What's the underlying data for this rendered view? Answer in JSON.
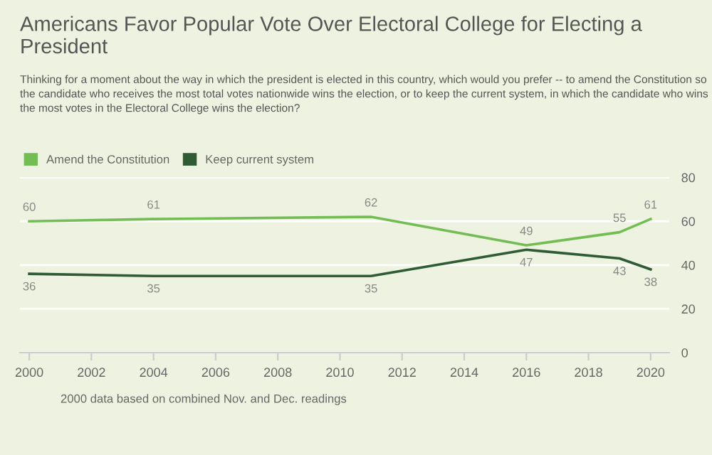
{
  "chart_data": {
    "type": "line",
    "title": "Americans Favor Popular Vote Over Electoral College for Electing a President",
    "subtitle": "Thinking for a moment about the way in which the president is elected in this country, which would you prefer -- to amend the Constitution so the candidate who receives the most total votes nationwide wins the election, or to keep the current system, in which the candidate who wins the most votes in the Electoral College wins the election?",
    "x": [
      2000,
      2004,
      2011,
      2016,
      2019,
      2020
    ],
    "series": [
      {
        "name": "Amend the Constitution",
        "color": "#74bd55",
        "values": [
          60,
          61,
          62,
          49,
          55,
          61
        ]
      },
      {
        "name": "Keep current system",
        "color": "#2f5b35",
        "values": [
          36,
          35,
          35,
          47,
          43,
          38
        ]
      }
    ],
    "data_labels": true,
    "xlim": [
      1999.7,
      2020.6
    ],
    "xticks": [
      2000,
      2002,
      2004,
      2006,
      2008,
      2010,
      2012,
      2014,
      2016,
      2018,
      2020
    ],
    "ylim": [
      0,
      80
    ],
    "yticks": [
      0,
      20,
      40,
      60,
      80
    ],
    "grid": "y",
    "legend": "top left",
    "marker": "none",
    "line_style": "solid",
    "annotations": [
      "2000 data based on combined Nov. and Dec. readings"
    ]
  }
}
